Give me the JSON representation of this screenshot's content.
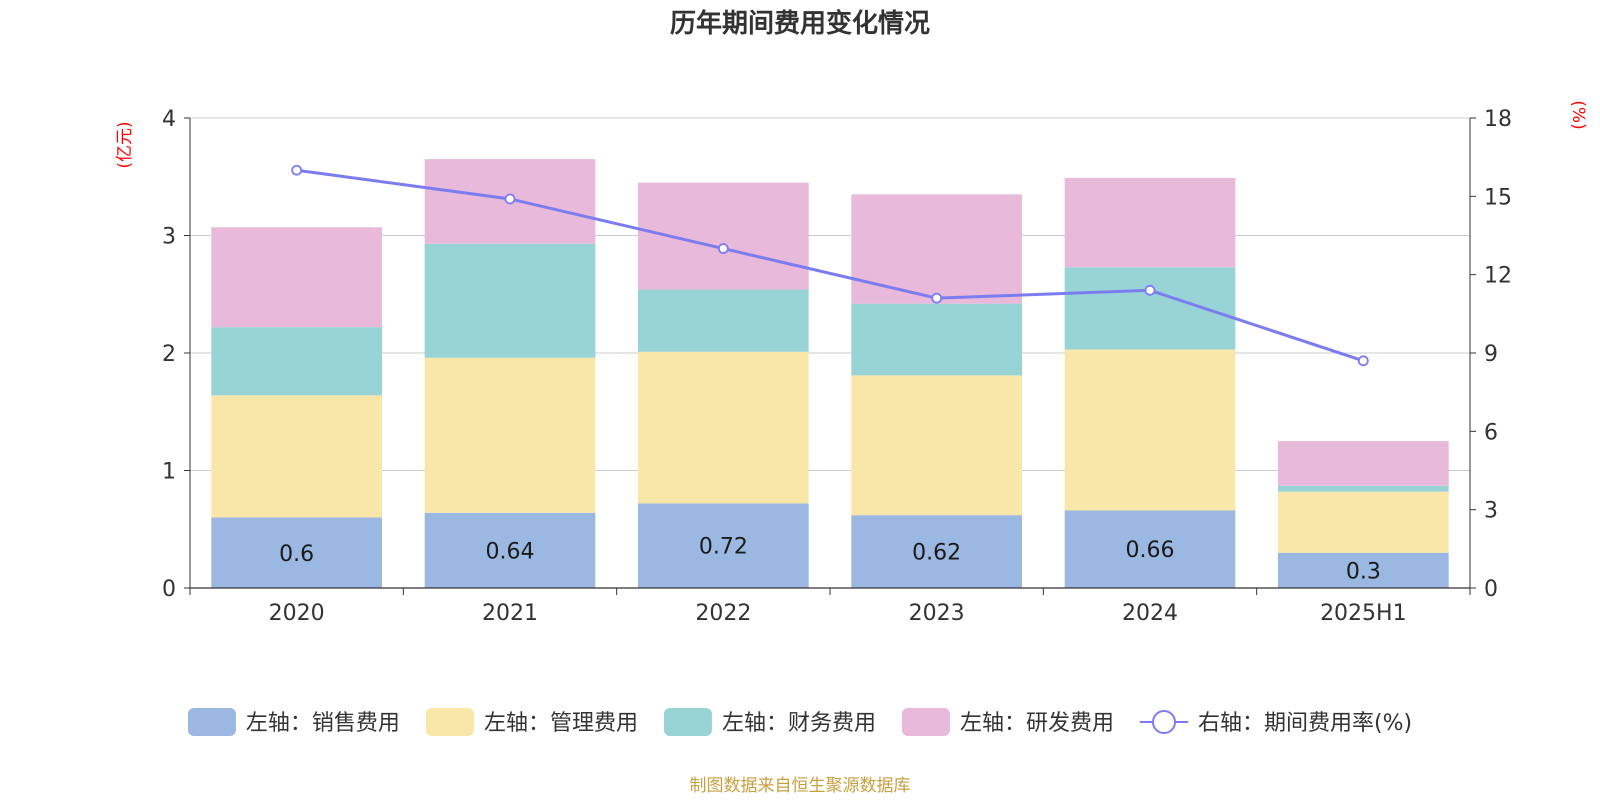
{
  "chart_data": {
    "type": "bar",
    "title": "历年期间费用变化情况",
    "categories": [
      "2020",
      "2021",
      "2022",
      "2023",
      "2024",
      "2025H1"
    ],
    "left_axis": {
      "unit": "(亿元)",
      "ylim": [
        0,
        4
      ],
      "ticks": [
        0,
        1,
        2,
        3,
        4
      ]
    },
    "right_axis": {
      "unit": "(%)",
      "ylim": [
        0,
        18
      ],
      "ticks": [
        0,
        3,
        6,
        9,
        12,
        15,
        18
      ]
    },
    "grid": true,
    "legend_position": "bottom",
    "series": [
      {
        "name": "左轴：销售费用",
        "type": "bar",
        "axis": "left",
        "color": "#9bb8e2",
        "values": [
          0.6,
          0.64,
          0.72,
          0.62,
          0.66,
          0.3
        ],
        "labels": [
          "0.6",
          "0.64",
          "0.72",
          "0.62",
          "0.66",
          "0.3"
        ]
      },
      {
        "name": "左轴：管理费用",
        "type": "bar",
        "axis": "left",
        "color": "#f8e7a8",
        "values": [
          1.04,
          1.32,
          1.29,
          1.19,
          1.37,
          0.52
        ]
      },
      {
        "name": "左轴：财务费用",
        "type": "bar",
        "axis": "left",
        "color": "#98d4d6",
        "values": [
          0.58,
          0.97,
          0.53,
          0.61,
          0.7,
          0.05
        ]
      },
      {
        "name": "左轴：研发费用",
        "type": "bar",
        "axis": "left",
        "color": "#e8b9da",
        "values": [
          0.85,
          0.72,
          0.91,
          0.93,
          0.76,
          0.38
        ]
      },
      {
        "name": "右轴：期间费用率(%)",
        "type": "line",
        "axis": "right",
        "color": "#7b7cf0",
        "values": [
          16.0,
          14.9,
          13.0,
          11.1,
          11.4,
          8.7
        ]
      }
    ]
  },
  "source_note": "制图数据来自恒生聚源数据库"
}
